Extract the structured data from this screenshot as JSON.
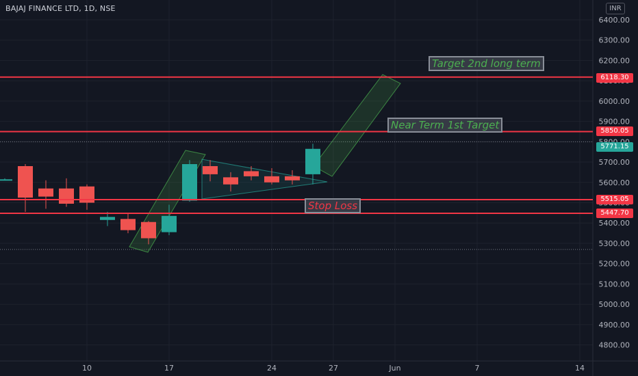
{
  "header": {
    "title": "BAJAJ FINANCE LTD, 1D, NSE",
    "currency": "INR"
  },
  "annotations": {
    "target2": "Target 2nd long term",
    "target1": "Near Term 1st Target",
    "stoploss": "Stop Loss"
  },
  "price_tags": {
    "t2": "6118.30",
    "t1": "5850.05",
    "last": "5771.15",
    "sl1": "5515.05",
    "sl2": "5447.70"
  },
  "colors": {
    "background": "#131722",
    "up": "#26a69a",
    "down": "#ef5350",
    "level_line": "#f23645",
    "axis_text": "#b2b5be",
    "channel_fill": "#4caf50"
  },
  "chart_data": {
    "type": "candlestick",
    "title": "BAJAJ FINANCE LTD, 1D, NSE",
    "currency": "INR",
    "ylim": [
      4720,
      6480
    ],
    "y_ticks": [
      "6400.00",
      "6300.00",
      "6200.00",
      "6100.00",
      "6000.00",
      "5900.00",
      "5800.00",
      "5700.00",
      "5600.00",
      "5500.00",
      "5400.00",
      "5300.00",
      "5200.00",
      "5100.00",
      "5000.00",
      "4900.00",
      "4800.00"
    ],
    "x_tick_labels": [
      {
        "label": "10",
        "slot": 3.5
      },
      {
        "label": "17",
        "slot": 7.5
      },
      {
        "label": "24",
        "slot": 12.5
      },
      {
        "label": "27",
        "slot": 15.5
      },
      {
        "label": "Jun",
        "slot": 18.5
      },
      {
        "label": "7",
        "slot": 22.5
      },
      {
        "label": "14",
        "slot": 27.5
      }
    ],
    "candles": [
      {
        "slot": -0.5,
        "open": 5615,
        "high": 5620,
        "low": 5610,
        "close": 5615
      },
      {
        "slot": 0.5,
        "open": 5680,
        "high": 5690,
        "low": 5455,
        "close": 5525
      },
      {
        "slot": 1.5,
        "open": 5570,
        "high": 5610,
        "low": 5470,
        "close": 5530
      },
      {
        "slot": 2.5,
        "open": 5570,
        "high": 5620,
        "low": 5480,
        "close": 5495
      },
      {
        "slot": 3.5,
        "open": 5580,
        "high": 5590,
        "low": 5465,
        "close": 5500
      },
      {
        "slot": 4.5,
        "open": 5415,
        "high": 5455,
        "low": 5385,
        "close": 5430
      },
      {
        "slot": 5.5,
        "open": 5420,
        "high": 5450,
        "low": 5350,
        "close": 5365
      },
      {
        "slot": 6.5,
        "open": 5405,
        "high": 5410,
        "low": 5295,
        "close": 5325
      },
      {
        "slot": 7.5,
        "open": 5355,
        "high": 5490,
        "low": 5340,
        "close": 5435
      },
      {
        "slot": 8.5,
        "open": 5510,
        "high": 5710,
        "low": 5505,
        "close": 5690
      },
      {
        "slot": 9.5,
        "open": 5680,
        "high": 5710,
        "low": 5605,
        "close": 5640
      },
      {
        "slot": 10.5,
        "open": 5625,
        "high": 5650,
        "low": 5555,
        "close": 5590
      },
      {
        "slot": 11.5,
        "open": 5655,
        "high": 5680,
        "low": 5610,
        "close": 5630
      },
      {
        "slot": 12.5,
        "open": 5630,
        "high": 5670,
        "low": 5590,
        "close": 5600
      },
      {
        "slot": 13.5,
        "open": 5630,
        "high": 5660,
        "low": 5590,
        "close": 5610
      },
      {
        "slot": 14.5,
        "open": 5640,
        "high": 5790,
        "low": 5590,
        "close": 5765
      }
    ],
    "levels": [
      {
        "value": 6118.3,
        "label": "6118.30"
      },
      {
        "value": 5850.05,
        "label": "5850.05"
      },
      {
        "value": 5515.05,
        "label": "5515.05"
      },
      {
        "value": 5447.7,
        "label": "5447.70"
      }
    ],
    "last_price": 5771.15,
    "dotted_levels": [
      5800,
      5270
    ]
  }
}
